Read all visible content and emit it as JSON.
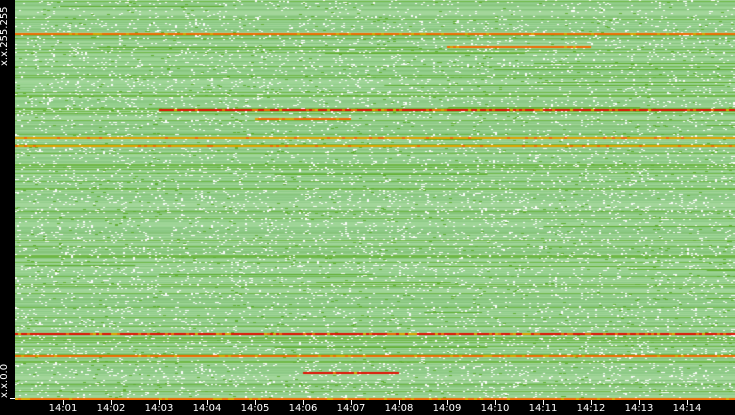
{
  "chart_data": {
    "type": "heatmap",
    "y_labels": {
      "top": "x.x.255.255",
      "bottom": "x.x.0.0"
    },
    "x_ticks": [
      "14:01",
      "14:02",
      "14:03",
      "14:04",
      "14:05",
      "14:06",
      "14:07",
      "14:08",
      "14:09",
      "14:10",
      "14:11",
      "14:12",
      "14:13",
      "14:14"
    ],
    "x_range": [
      "14:00",
      "14:15"
    ],
    "colors": {
      "background": "#000000",
      "low": "#94cf8c",
      "mid": "#5fae2e",
      "medium_high": "#e0a300",
      "high": "#f06a00",
      "very_high": "#e01000",
      "empty": "#ffffff"
    },
    "hot_rows": [
      {
        "row_fraction_from_top": 0.083,
        "start": "14:00",
        "end": "14:15",
        "level": "high"
      },
      {
        "row_fraction_from_top": 0.115,
        "start": "14:09",
        "end": "14:12",
        "level": "high"
      },
      {
        "row_fraction_from_top": 0.272,
        "start": "14:03",
        "end": "14:15",
        "level": "very_high"
      },
      {
        "row_fraction_from_top": 0.295,
        "start": "14:05",
        "end": "14:07",
        "level": "high"
      },
      {
        "row_fraction_from_top": 0.343,
        "start": "14:00",
        "end": "14:15",
        "level": "medium_high"
      },
      {
        "row_fraction_from_top": 0.363,
        "start": "14:00",
        "end": "14:15",
        "level": "medium_high"
      },
      {
        "row_fraction_from_top": 0.833,
        "start": "14:00",
        "end": "14:15",
        "level": "very_high"
      },
      {
        "row_fraction_from_top": 0.888,
        "start": "14:00",
        "end": "14:15",
        "level": "high"
      },
      {
        "row_fraction_from_top": 0.93,
        "start": "14:06",
        "end": "14:08",
        "level": "very_high"
      },
      {
        "row_fraction_from_top": 0.995,
        "start": "14:00",
        "end": "14:15",
        "level": "high"
      }
    ]
  }
}
